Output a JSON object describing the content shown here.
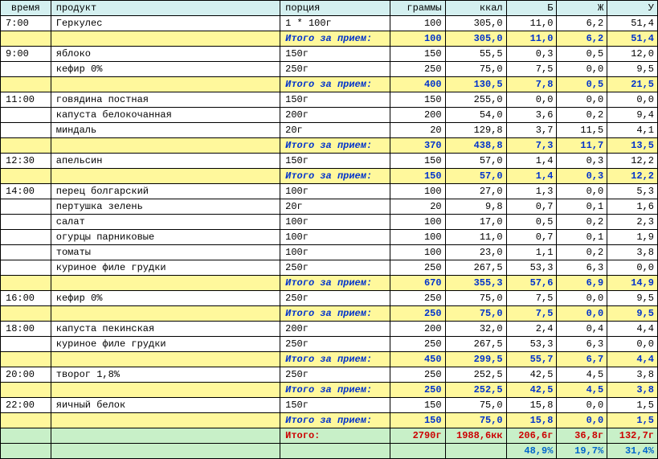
{
  "headers": {
    "time": "время",
    "product": "продукт",
    "portion": "порция",
    "grams": "граммы",
    "kcal": "ккал",
    "b": "Б",
    "zh": "Ж",
    "u": "У"
  },
  "subtotal_label": "Итого за прием:",
  "total_label": "Итого:",
  "meals": [
    {
      "time": "7:00",
      "items": [
        {
          "product": "Геркулес",
          "portion": "1 * 100г",
          "grams": "100",
          "kcal": "305,0",
          "b": "11,0",
          "zh": "6,2",
          "u": "51,4"
        }
      ],
      "subtotal": {
        "grams": "100",
        "kcal": "305,0",
        "b": "11,0",
        "zh": "6,2",
        "u": "51,4"
      }
    },
    {
      "time": "9:00",
      "items": [
        {
          "product": "яблоко",
          "portion": "150г",
          "grams": "150",
          "kcal": "55,5",
          "b": "0,3",
          "zh": "0,5",
          "u": "12,0"
        },
        {
          "product": "кефир 0%",
          "portion": "250г",
          "grams": "250",
          "kcal": "75,0",
          "b": "7,5",
          "zh": "0,0",
          "u": "9,5"
        }
      ],
      "subtotal": {
        "grams": "400",
        "kcal": "130,5",
        "b": "7,8",
        "zh": "0,5",
        "u": "21,5"
      }
    },
    {
      "time": "11:00",
      "items": [
        {
          "product": "говядина постная",
          "portion": "150г",
          "grams": "150",
          "kcal": "255,0",
          "b": "0,0",
          "zh": "0,0",
          "u": "0,0"
        },
        {
          "product": "капуста белокочанная",
          "portion": "200г",
          "grams": "200",
          "kcal": "54,0",
          "b": "3,6",
          "zh": "0,2",
          "u": "9,4"
        },
        {
          "product": "миндаль",
          "portion": "20г",
          "grams": "20",
          "kcal": "129,8",
          "b": "3,7",
          "zh": "11,5",
          "u": "4,1"
        }
      ],
      "subtotal": {
        "grams": "370",
        "kcal": "438,8",
        "b": "7,3",
        "zh": "11,7",
        "u": "13,5"
      }
    },
    {
      "time": "12:30",
      "items": [
        {
          "product": "апельсин",
          "portion": "150г",
          "grams": "150",
          "kcal": "57,0",
          "b": "1,4",
          "zh": "0,3",
          "u": "12,2"
        }
      ],
      "subtotal": {
        "grams": "150",
        "kcal": "57,0",
        "b": "1,4",
        "zh": "0,3",
        "u": "12,2"
      }
    },
    {
      "time": "14:00",
      "items": [
        {
          "product": "перец болгарский",
          "portion": "100г",
          "grams": "100",
          "kcal": "27,0",
          "b": "1,3",
          "zh": "0,0",
          "u": "5,3"
        },
        {
          "product": "пертушка зелень",
          "portion": "20г",
          "grams": "20",
          "kcal": "9,8",
          "b": "0,7",
          "zh": "0,1",
          "u": "1,6"
        },
        {
          "product": "салат",
          "portion": "100г",
          "grams": "100",
          "kcal": "17,0",
          "b": "0,5",
          "zh": "0,2",
          "u": "2,3"
        },
        {
          "product": "огурцы парниковые",
          "portion": "100г",
          "grams": "100",
          "kcal": "11,0",
          "b": "0,7",
          "zh": "0,1",
          "u": "1,9"
        },
        {
          "product": "томаты",
          "portion": "100г",
          "grams": "100",
          "kcal": "23,0",
          "b": "1,1",
          "zh": "0,2",
          "u": "3,8"
        },
        {
          "product": "куриное филе грудки",
          "portion": "250г",
          "grams": "250",
          "kcal": "267,5",
          "b": "53,3",
          "zh": "6,3",
          "u": "0,0"
        }
      ],
      "subtotal": {
        "grams": "670",
        "kcal": "355,3",
        "b": "57,6",
        "zh": "6,9",
        "u": "14,9"
      }
    },
    {
      "time": "16:00",
      "items": [
        {
          "product": "кефир 0%",
          "portion": "250г",
          "grams": "250",
          "kcal": "75,0",
          "b": "7,5",
          "zh": "0,0",
          "u": "9,5"
        }
      ],
      "subtotal": {
        "grams": "250",
        "kcal": "75,0",
        "b": "7,5",
        "zh": "0,0",
        "u": "9,5"
      }
    },
    {
      "time": "18:00",
      "items": [
        {
          "product": "капуста пекинская",
          "portion": "200г",
          "grams": "200",
          "kcal": "32,0",
          "b": "2,4",
          "zh": "0,4",
          "u": "4,4"
        },
        {
          "product": "куриное филе грудки",
          "portion": "250г",
          "grams": "250",
          "kcal": "267,5",
          "b": "53,3",
          "zh": "6,3",
          "u": "0,0"
        }
      ],
      "subtotal": {
        "grams": "450",
        "kcal": "299,5",
        "b": "55,7",
        "zh": "6,7",
        "u": "4,4"
      }
    },
    {
      "time": "20:00",
      "items": [
        {
          "product": "творог 1,8%",
          "portion": "250г",
          "grams": "250",
          "kcal": "252,5",
          "b": "42,5",
          "zh": "4,5",
          "u": "3,8"
        }
      ],
      "subtotal": {
        "grams": "250",
        "kcal": "252,5",
        "b": "42,5",
        "zh": "4,5",
        "u": "3,8"
      }
    },
    {
      "time": "22:00",
      "items": [
        {
          "product": "яичный белок",
          "portion": "150г",
          "grams": "150",
          "kcal": "75,0",
          "b": "15,8",
          "zh": "0,0",
          "u": "1,5"
        }
      ],
      "subtotal": {
        "grams": "150",
        "kcal": "75,0",
        "b": "15,8",
        "zh": "0,0",
        "u": "1,5"
      }
    }
  ],
  "total": {
    "grams": "2790г",
    "kcal": "1988,6кк",
    "b": "206,6г",
    "zh": "36,8г",
    "u": "132,7г"
  },
  "percent": {
    "b": "48,9%",
    "zh": "19,7%",
    "u": "31,4%"
  }
}
